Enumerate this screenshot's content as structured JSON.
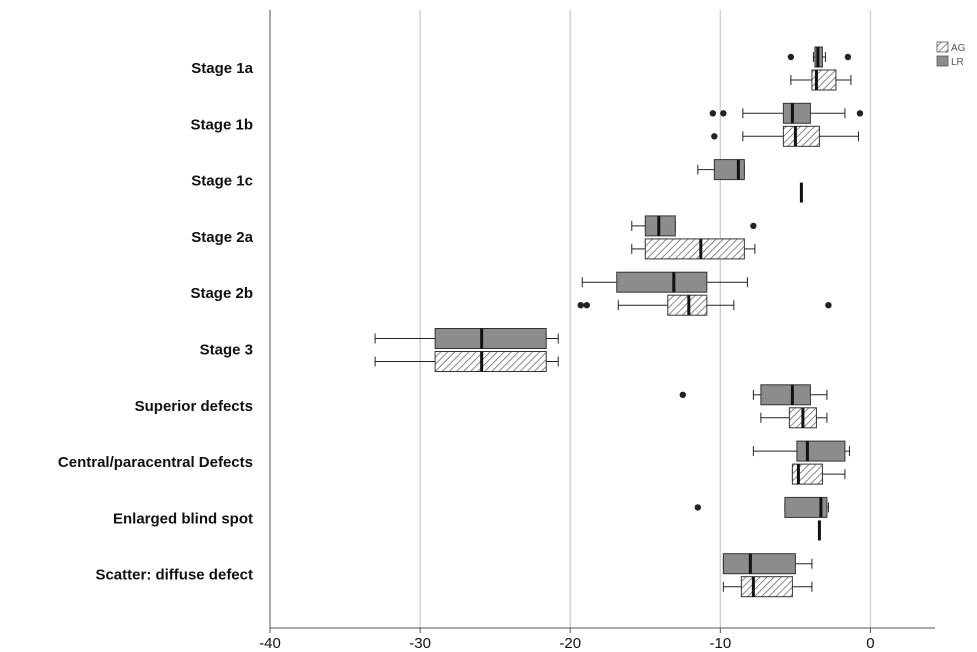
{
  "chart_data": {
    "type": "boxplot",
    "orientation": "horizontal",
    "title": "",
    "xlabel": "",
    "ylabel": "",
    "xlim": [
      -40,
      4.3
    ],
    "xticks": [
      -40,
      -30,
      -20,
      -10,
      0
    ],
    "xtick_labels": [
      "-40",
      "-30",
      "-20",
      "-10",
      "0"
    ],
    "grid": "vertical",
    "legend_position": "top-right",
    "legend": [
      {
        "key": "AG",
        "label": "AG",
        "style": "hatched",
        "color": "#ffffff"
      },
      {
        "key": "LR",
        "label": "LR",
        "style": "solid",
        "color": "#8c8c8c"
      }
    ],
    "categories": [
      "Stage 1a",
      "Stage 1b",
      "Stage 1c",
      "Stage 2a",
      "Stage 2b",
      "Stage 3",
      "Superior defects",
      "Central/paracentral Defects",
      "Enlarged blind spot",
      "Scatter: diffuse defect"
    ],
    "series": [
      {
        "key": "LR",
        "boxes": [
          {
            "min": -3.8,
            "q1": -3.7,
            "median": -3.5,
            "q3": -3.2,
            "max": -3.0,
            "outliers": [
              -5.3,
              -1.5
            ]
          },
          {
            "min": -8.5,
            "q1": -5.8,
            "median": -5.2,
            "q3": -4.0,
            "max": -1.7,
            "outliers": [
              -10.5,
              -9.8,
              -0.7
            ]
          },
          {
            "min": -11.5,
            "q1": -10.4,
            "median": -8.8,
            "q3": -8.4,
            "max": -8.4,
            "outliers": []
          },
          {
            "min": -15.9,
            "q1": -15.0,
            "median": -14.1,
            "q3": -13.0,
            "max": -13.0,
            "outliers": [
              -7.8
            ]
          },
          {
            "min": -19.2,
            "q1": -16.9,
            "median": -13.1,
            "q3": -10.9,
            "max": -8.2,
            "outliers": []
          },
          {
            "min": -33.0,
            "q1": -29.0,
            "median": -25.9,
            "q3": -21.6,
            "max": -20.8,
            "outliers": []
          },
          {
            "min": -7.8,
            "q1": -7.3,
            "median": -5.2,
            "q3": -4.0,
            "max": -2.9,
            "outliers": [
              -12.5
            ]
          },
          {
            "min": -7.8,
            "q1": -4.9,
            "median": -4.2,
            "q3": -1.7,
            "max": -1.4,
            "outliers": []
          },
          {
            "min": -5.7,
            "q1": -5.7,
            "median": -3.3,
            "q3": -2.9,
            "max": -2.8,
            "outliers": [
              -11.5
            ]
          },
          {
            "min": -9.8,
            "q1": -9.8,
            "median": -8.0,
            "q3": -5.0,
            "max": -3.9,
            "outliers": []
          }
        ]
      },
      {
        "key": "AG",
        "boxes": [
          {
            "min": -5.3,
            "q1": -3.9,
            "median": -3.6,
            "q3": -2.3,
            "max": -1.3,
            "outliers": []
          },
          {
            "min": -8.5,
            "q1": -5.8,
            "median": -5.0,
            "q3": -3.4,
            "max": -0.8,
            "outliers": [
              -10.4
            ]
          },
          {
            "min": -4.6,
            "q1": -4.6,
            "median": -4.6,
            "q3": -4.6,
            "max": -4.6,
            "outliers": []
          },
          {
            "min": -15.9,
            "q1": -15.0,
            "median": -11.3,
            "q3": -8.4,
            "max": -7.7,
            "outliers": []
          },
          {
            "min": -16.8,
            "q1": -13.5,
            "median": -12.1,
            "q3": -10.9,
            "max": -9.1,
            "outliers": [
              -19.3,
              -18.9,
              -2.8
            ]
          },
          {
            "min": -33.0,
            "q1": -29.0,
            "median": -25.9,
            "q3": -21.6,
            "max": -20.8,
            "outliers": []
          },
          {
            "min": -7.3,
            "q1": -5.4,
            "median": -4.5,
            "q3": -3.6,
            "max": -2.9,
            "outliers": []
          },
          {
            "min": -5.2,
            "q1": -5.2,
            "median": -4.8,
            "q3": -3.2,
            "max": -1.7,
            "outliers": []
          },
          {
            "min": -3.4,
            "q1": -3.4,
            "median": -3.4,
            "q3": -3.4,
            "max": -3.4,
            "outliers": []
          },
          {
            "min": -9.8,
            "q1": -8.6,
            "median": -7.8,
            "q3": -5.2,
            "max": -3.9,
            "outliers": []
          }
        ]
      }
    ]
  }
}
